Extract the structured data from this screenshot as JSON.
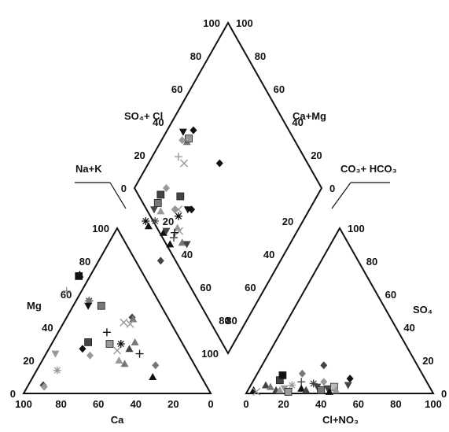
{
  "chart_data": {
    "type": "scatter",
    "subtype": "piper-diagram",
    "colors": {
      "black": "#111111",
      "dark": "#444444",
      "mid": "#777777",
      "light": "#999999",
      "pale": "#bbbbbb"
    },
    "labels": {
      "so4_cl": "SO₄+ Cl",
      "ca_mg": "Ca+Mg",
      "na_k": "Na+K",
      "co3_hco3": "CO₃+ HCO₃",
      "mg": "Mg",
      "ca": "Ca",
      "so4": "SO₄",
      "cl_no3": "Cl+NO₃"
    },
    "ticks": {
      "ca": [
        "100",
        "80",
        "60",
        "40",
        "20",
        "0"
      ],
      "mg": [
        "0",
        "20",
        "40",
        "60",
        "80",
        "100"
      ],
      "clno3": [
        "0",
        "20",
        "40",
        "60",
        "80",
        "100"
      ],
      "so4": [
        "0",
        "20",
        "40",
        "60",
        "80",
        "100"
      ],
      "diamond_left_upper": [
        "100",
        "80",
        "60",
        "40",
        "20",
        "0"
      ],
      "diamond_right_upper": [
        "100",
        "80",
        "60",
        "40",
        "20",
        "0"
      ],
      "diamond_left_lower": [
        "0",
        "20",
        "40",
        "60",
        "80",
        "100"
      ],
      "diamond_right_lower": [
        "0",
        "20",
        "40",
        "60",
        "80",
        "100"
      ]
    },
    "cation_points": [
      {
        "ca": 87,
        "mg": 5,
        "marker": "diamond",
        "color": "dark"
      },
      {
        "ca": 87,
        "mg": 4,
        "marker": "diamond",
        "color": "light"
      },
      {
        "ca": 75,
        "mg": 14,
        "marker": "asterisk",
        "color": "light"
      },
      {
        "ca": 71,
        "mg": 24,
        "marker": "triangle-down",
        "color": "light"
      },
      {
        "ca": 55,
        "mg": 27,
        "marker": "diamond",
        "color": "black"
      },
      {
        "ca": 53,
        "mg": 23,
        "marker": "diamond",
        "color": "light"
      },
      {
        "ca": 50,
        "mg": 31,
        "marker": "square",
        "color": "dark"
      },
      {
        "ca": 39,
        "mg": 30,
        "marker": "square",
        "color": "light"
      },
      {
        "ca": 39,
        "mg": 20,
        "marker": "triangle",
        "color": "light"
      },
      {
        "ca": 37,
        "mg": 26,
        "marker": "x",
        "color": "light"
      },
      {
        "ca": 37,
        "mg": 18,
        "marker": "triangle",
        "color": "mid"
      },
      {
        "ca": 37,
        "mg": 37,
        "marker": "plus",
        "color": "black"
      },
      {
        "ca": 33,
        "mg": 30,
        "marker": "asterisk",
        "color": "black"
      },
      {
        "ca": 30,
        "mg": 27,
        "marker": "triangle",
        "color": "dark"
      },
      {
        "ca": 25,
        "mg": 31,
        "marker": "triangle",
        "color": "mid"
      },
      {
        "ca": 26,
        "mg": 24,
        "marker": "plus",
        "color": "black"
      },
      {
        "ca": 26,
        "mg": 10,
        "marker": "triangle",
        "color": "black"
      },
      {
        "ca": 19,
        "mg": 46,
        "marker": "diamond",
        "color": "dark"
      },
      {
        "ca": 19,
        "mg": 45,
        "marker": "triangle",
        "color": "mid"
      },
      {
        "ca": 21,
        "mg": 17,
        "marker": "diamond",
        "color": "mid"
      },
      {
        "ca": 46,
        "mg": 62,
        "marker": "plus",
        "color": "light"
      },
      {
        "ca": 37,
        "mg": 56,
        "marker": "asterisk",
        "color": "black"
      },
      {
        "ca": 37,
        "mg": 56,
        "marker": "diamond",
        "color": "mid"
      },
      {
        "ca": 35,
        "mg": 71,
        "marker": "square",
        "color": "black"
      },
      {
        "ca": 34,
        "mg": 72,
        "marker": "triangle",
        "color": "black"
      },
      {
        "ca": 39,
        "mg": 53,
        "marker": "triangle-down",
        "color": "black"
      },
      {
        "ca": 32,
        "mg": 53,
        "marker": "square",
        "color": "mid"
      },
      {
        "ca": 22,
        "mg": 42,
        "marker": "x",
        "color": "light"
      },
      {
        "ca": 25,
        "mg": 43,
        "marker": "x",
        "color": "light"
      }
    ],
    "anion_points": [
      {
        "clno3": 3,
        "so4": 2,
        "marker": "triangle",
        "color": "black"
      },
      {
        "clno3": 5,
        "so4": 1,
        "marker": "x",
        "color": "light"
      },
      {
        "clno3": 8,
        "so4": 5,
        "marker": "triangle",
        "color": "dark"
      },
      {
        "clno3": 11,
        "so4": 4,
        "marker": "triangle",
        "color": "mid"
      },
      {
        "clno3": 14,
        "so4": 8,
        "marker": "square",
        "color": "dark"
      },
      {
        "clno3": 14,
        "so4": 11,
        "marker": "square",
        "color": "black"
      },
      {
        "clno3": 15,
        "so4": 2,
        "marker": "triangle",
        "color": "dark"
      },
      {
        "clno3": 17,
        "so4": 2,
        "marker": "triangle",
        "color": "light"
      },
      {
        "clno3": 19,
        "so4": 3,
        "marker": "triangle-down",
        "color": "light"
      },
      {
        "clno3": 22,
        "so4": 5,
        "marker": "asterisk",
        "color": "light"
      },
      {
        "clno3": 22,
        "so4": 1,
        "marker": "square",
        "color": "light"
      },
      {
        "clno3": 24,
        "so4": 12,
        "marker": "diamond",
        "color": "mid"
      },
      {
        "clno3": 26,
        "so4": 7,
        "marker": "plus",
        "color": "dark"
      },
      {
        "clno3": 28,
        "so4": 3,
        "marker": "triangle",
        "color": "black"
      },
      {
        "clno3": 31,
        "so4": 2,
        "marker": "triangle",
        "color": "dark"
      },
      {
        "clno3": 33,
        "so4": 6,
        "marker": "asterisk",
        "color": "dark"
      },
      {
        "clno3": 33,
        "so4": 17,
        "marker": "diamond",
        "color": "dark"
      },
      {
        "clno3": 36,
        "so4": 4,
        "marker": "triangle-down",
        "color": "dark"
      },
      {
        "clno3": 38,
        "so4": 7,
        "marker": "diamond",
        "color": "light"
      },
      {
        "clno3": 39,
        "so4": 2,
        "marker": "square",
        "color": "mid"
      },
      {
        "clno3": 42,
        "so4": 3,
        "marker": "triangle-down",
        "color": "dark"
      },
      {
        "clno3": 44,
        "so4": 1,
        "marker": "triangle",
        "color": "black"
      },
      {
        "clno3": 45,
        "so4": 4,
        "marker": "square",
        "color": "pale"
      },
      {
        "clno3": 47,
        "so4": 2,
        "marker": "triangle",
        "color": "light"
      },
      {
        "clno3": 51,
        "so4": 9,
        "marker": "diamond",
        "color": "black"
      },
      {
        "clno3": 52,
        "so4": 5,
        "marker": "triangle-down",
        "color": "dark"
      }
    ],
    "diamond_points": [
      {
        "nak": 14,
        "so4cl": 49,
        "marker": "diamond",
        "color": "black"
      },
      {
        "nak": 14,
        "so4cl": 42,
        "marker": "triangle",
        "color": "mid"
      },
      {
        "nak": 14,
        "so4cl": 44,
        "marker": "square",
        "color": "light"
      },
      {
        "nak": 9,
        "so4cl": 43,
        "marker": "triangle-down",
        "color": "black"
      },
      {
        "nak": 11,
        "so4cl": 40,
        "marker": "diamond",
        "color": "light"
      },
      {
        "nak": 14,
        "so4cl": 33,
        "marker": "plus",
        "color": "light"
      },
      {
        "nak": 19,
        "so4cl": 34,
        "marker": "x",
        "color": "light"
      },
      {
        "nak": 38,
        "so4cl": 53,
        "marker": "diamond",
        "color": "black"
      },
      {
        "nak": 37,
        "so4cl": 24,
        "marker": "diamond",
        "color": "black"
      },
      {
        "nak": 35,
        "so4cl": 22,
        "marker": "triangle-down",
        "color": "black"
      },
      {
        "nak": 30,
        "so4cl": 17,
        "marker": "x",
        "color": "light"
      },
      {
        "nak": 27,
        "so4cl": 22,
        "marker": "square",
        "color": "dark"
      },
      {
        "nak": 32,
        "so4cl": 15,
        "marker": "asterisk",
        "color": "black"
      },
      {
        "nak": 35,
        "so4cl": 11,
        "marker": "triangle",
        "color": "light"
      },
      {
        "nak": 28,
        "so4cl": 15,
        "marker": "diamond",
        "color": "light"
      },
      {
        "nak": 37,
        "so4cl": 11,
        "marker": "x",
        "color": "light"
      },
      {
        "nak": 35,
        "so4cl": 8,
        "marker": "plus",
        "color": "black"
      },
      {
        "nak": 42,
        "so4cl": 9,
        "marker": "triangle",
        "color": "mid"
      },
      {
        "nak": 45,
        "so4cl": 11,
        "marker": "triangle-down",
        "color": "dark"
      },
      {
        "nak": 17,
        "so4cl": 8,
        "marker": "square",
        "color": "mid"
      },
      {
        "nak": 17,
        "so4cl": 4,
        "marker": "triangle-down",
        "color": "dark"
      },
      {
        "nak": 21,
        "so4cl": 1,
        "marker": "asterisk",
        "color": "dark"
      },
      {
        "nak": 16,
        "so4cl": 12,
        "marker": "square",
        "color": "dark"
      },
      {
        "nak": 29,
        "so4cl": 2,
        "marker": "triangle",
        "color": "black"
      },
      {
        "nak": 30,
        "so4cl": 4,
        "marker": "triangle-down",
        "color": "dark"
      },
      {
        "nak": 21,
        "so4cl": 7,
        "marker": "triangle",
        "color": "light"
      },
      {
        "nak": 36,
        "so4cl": 2,
        "marker": "triangle",
        "color": "black"
      },
      {
        "nak": 36,
        "so4cl": 6,
        "marker": "plus",
        "color": "dark"
      },
      {
        "nak": 17,
        "so4cl": 17,
        "marker": "diamond",
        "color": "light"
      },
      {
        "nak": 36,
        "so4cl": -8,
        "marker": "diamond",
        "color": "dark"
      },
      {
        "nak": 16,
        "so4cl": -4,
        "marker": "asterisk",
        "color": "black"
      },
      {
        "nak": 19,
        "so4cl": -4,
        "marker": "triangle",
        "color": "black"
      }
    ]
  }
}
